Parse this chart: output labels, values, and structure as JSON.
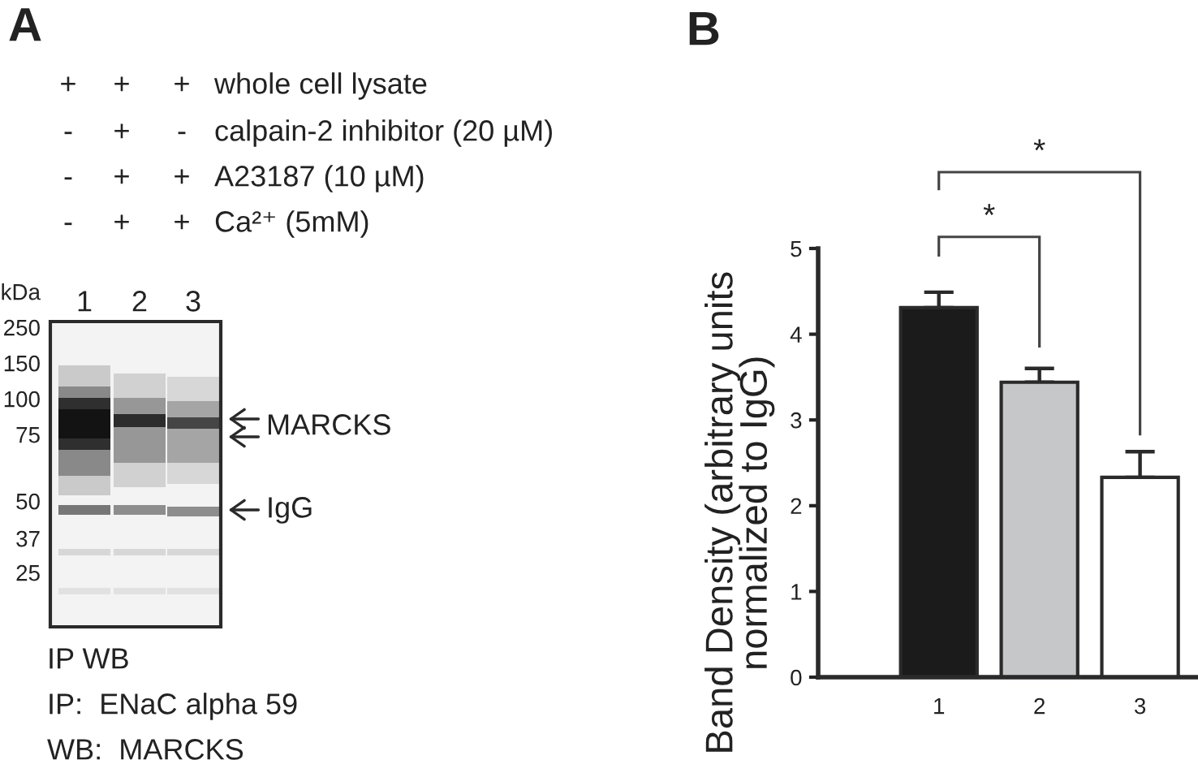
{
  "chart_data": [
    {
      "type": "other",
      "title": "A",
      "annotations": [
        "+",
        "+",
        "+",
        "whole cell lysate",
        "-",
        "+",
        "-",
        "calpain-2 inhibitor (20 µM)",
        "-",
        "+",
        "+",
        "A23187 (10 µM)",
        "-",
        "+",
        "+",
        "Ca²⁺ (5mM)",
        "kDa",
        "1",
        "2",
        "3",
        "250",
        "150",
        "100",
        "75",
        "50",
        "37",
        "25",
        "MARCKS",
        "IgG",
        "IP WB",
        "IP:  ENaC alpha 59",
        "WB:  MARCKS"
      ]
    },
    {
      "type": "bar",
      "title": "B",
      "categories": [
        "1",
        "2",
        "3"
      ],
      "values": [
        4.31,
        3.44,
        2.33
      ],
      "colors": [
        "#1b1b1b",
        "#c6c7c9",
        "#ffffff"
      ],
      "errors": [
        [
          4.31,
          4.49
        ],
        [
          3.44,
          3.6
        ],
        [
          2.33,
          2.63
        ]
      ],
      "ylabel": "Band Density (arbitrary units\nnormalized to IgG)",
      "ylim": [
        0,
        5
      ],
      "yticks": [
        0,
        1,
        2,
        3,
        4,
        5
      ],
      "grid": false,
      "annotations": [
        "*",
        "*"
      ]
    }
  ]
}
